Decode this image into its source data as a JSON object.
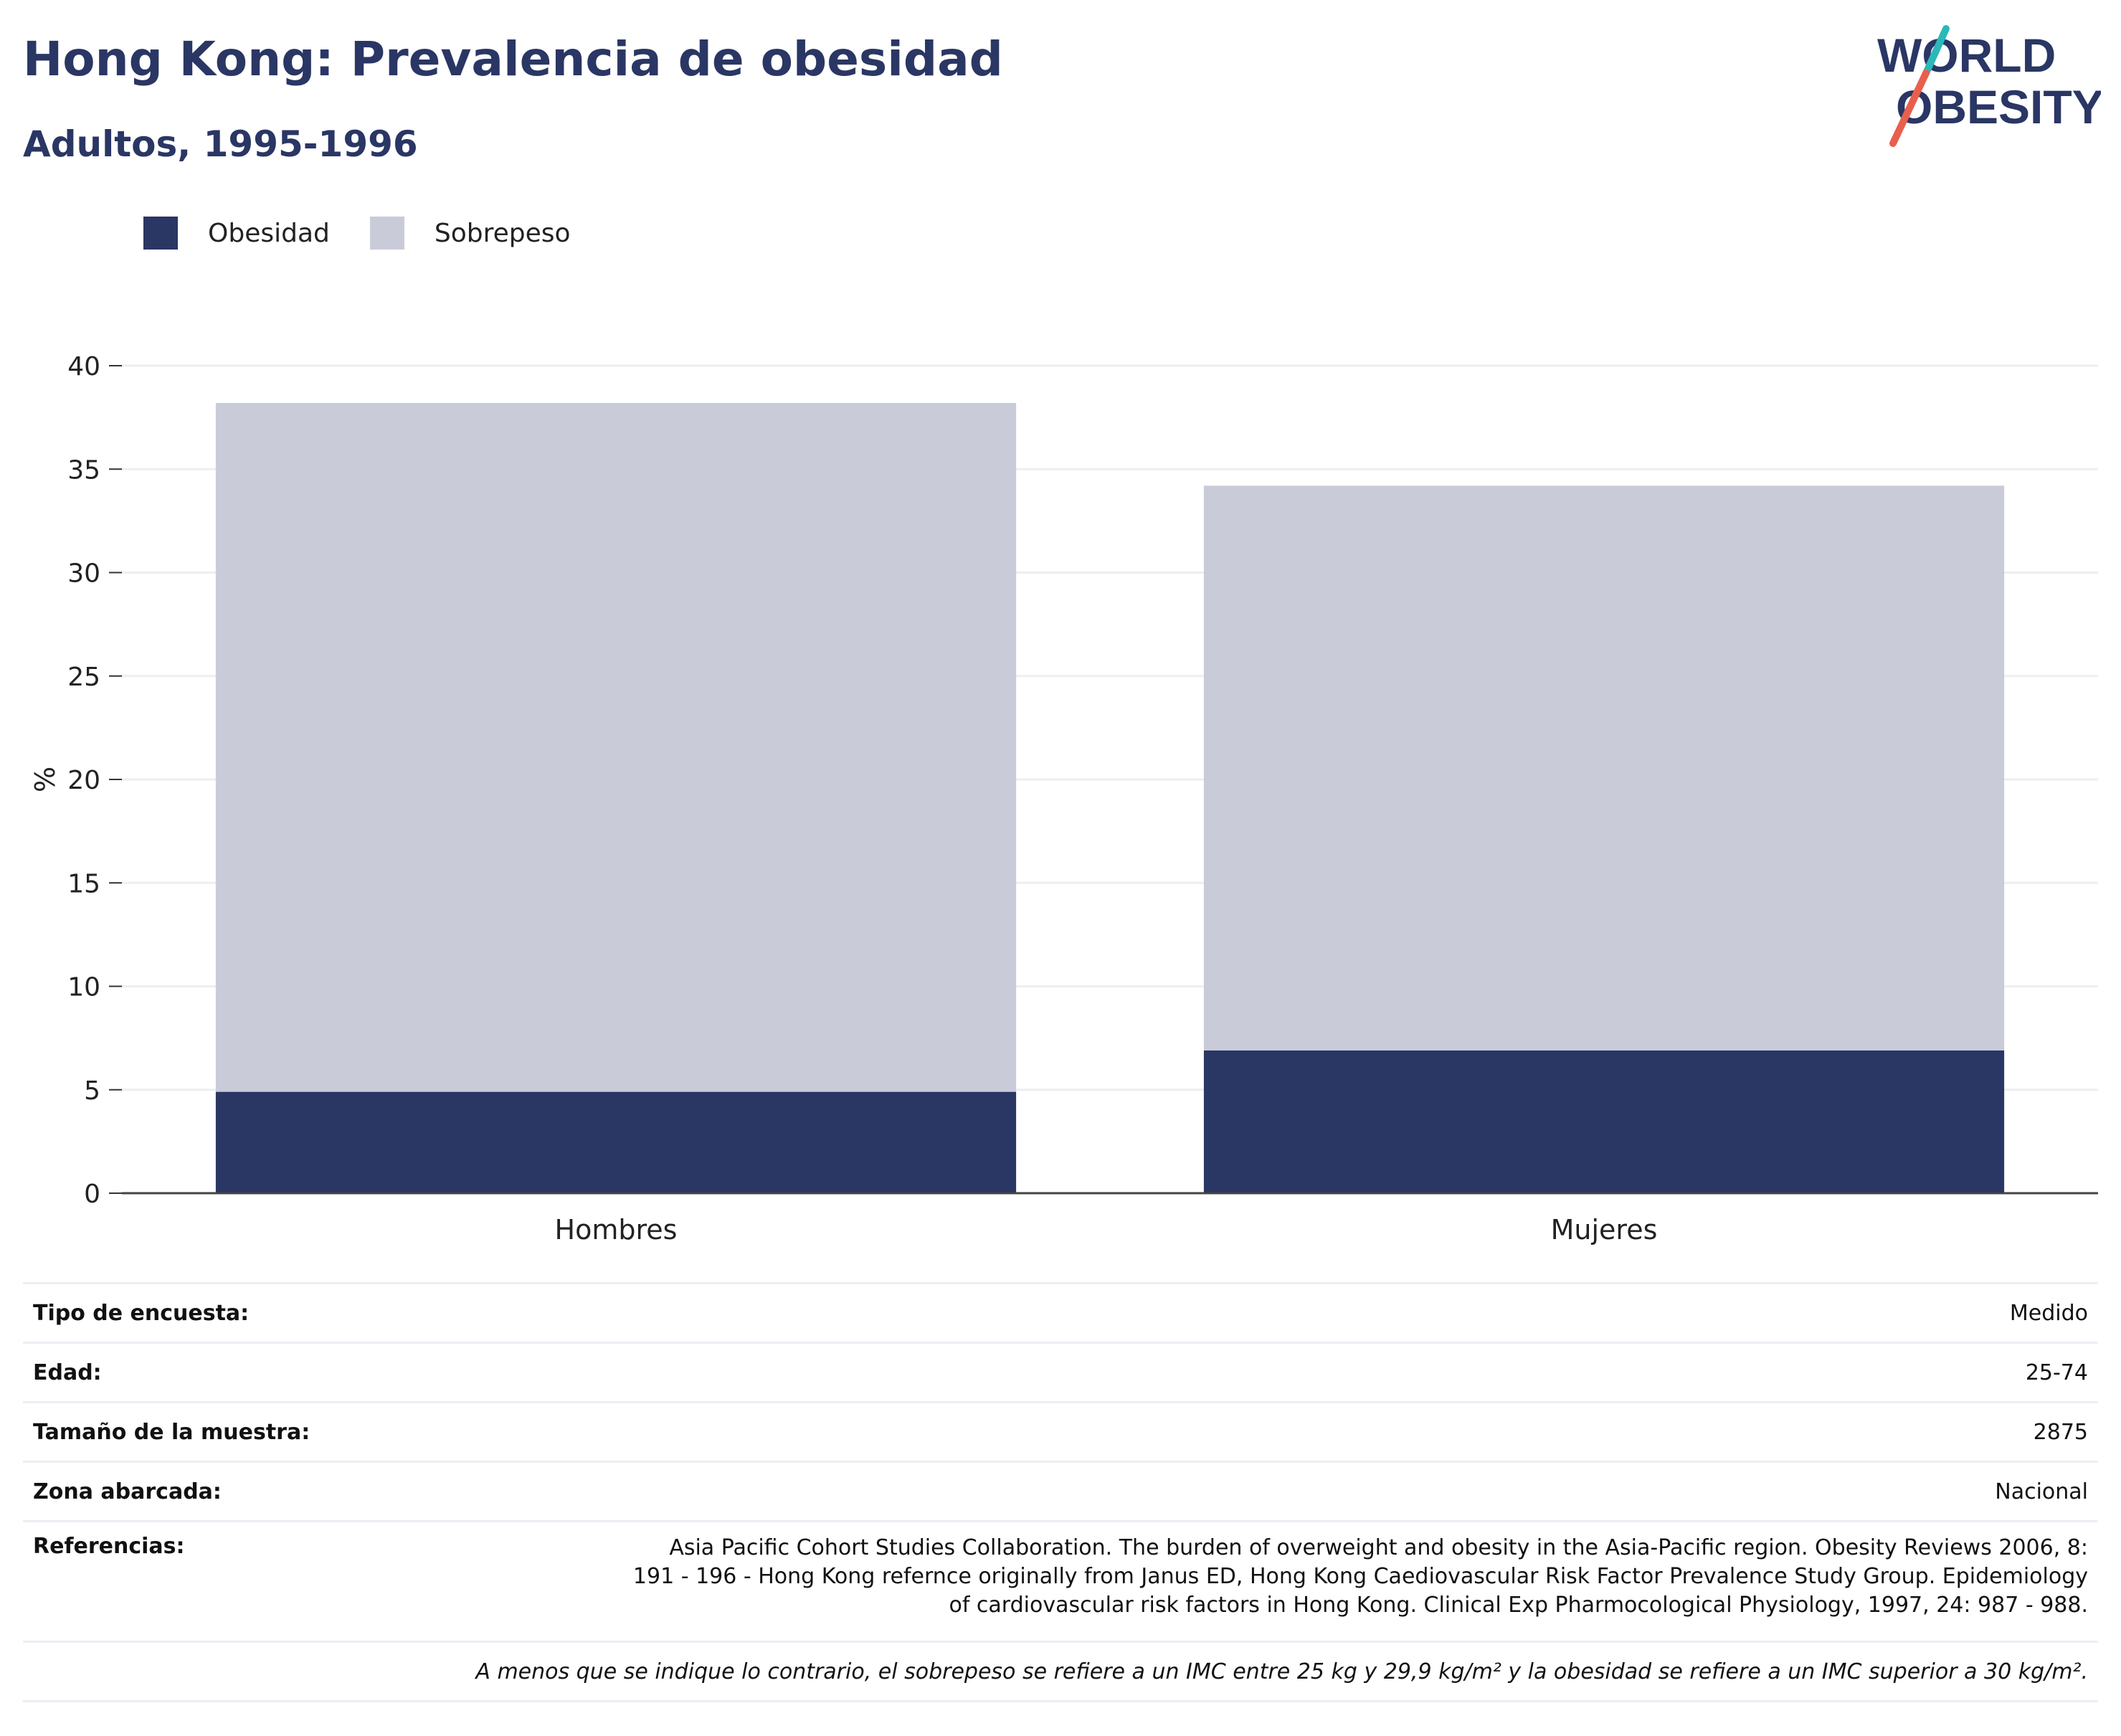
{
  "header": {
    "title": "Hong Kong: Prevalencia de obesidad",
    "subtitle": "Adultos, 1995-1996"
  },
  "logo": {
    "line1": "WORLD",
    "line2": "OBESITY"
  },
  "colors": {
    "obesity": "#2a3664",
    "overweight": "#c9ccd8",
    "title": "#2a3664",
    "logo_slash_top": "#2bb8b8",
    "logo_slash_bottom": "#e8604c"
  },
  "legend": {
    "items": [
      "Obesidad",
      "Sobrepeso"
    ]
  },
  "chart_data": {
    "type": "bar",
    "stacked": true,
    "categories": [
      "Hombres",
      "Mujeres"
    ],
    "series": [
      {
        "name": "Obesidad",
        "values": [
          4.9,
          6.9
        ]
      },
      {
        "name": "Sobrepeso",
        "values": [
          33.3,
          27.3
        ]
      }
    ],
    "ylabel": "%",
    "ylim": [
      0,
      40
    ],
    "yticks": [
      0,
      5,
      10,
      15,
      20,
      25,
      30,
      35,
      40
    ],
    "grid": true,
    "legend_position": "top-left"
  },
  "meta": {
    "survey_type": {
      "label": "Tipo de encuesta:",
      "value": "Medido"
    },
    "age": {
      "label": "Edad:",
      "value": "25-74"
    },
    "sample_size": {
      "label": "Tamaño de la muestra:",
      "value": "2875"
    },
    "area": {
      "label": "Zona abarcada:",
      "value": "Nacional"
    },
    "references": {
      "label": "Referencias:",
      "lines": [
        "Asia Pacific Cohort Studies Collaboration. The burden of overweight and obesity in the Asia-Pacific region. Obesity Reviews 2006, 8:",
        "191 - 196 - Hong Kong refernce originally from Janus ED, Hong Kong Caediovascular Risk Factor Prevalence Study Group. Epidemiology",
        "of cardiovascular risk factors in Hong Kong. Clinical Exp Pharmocological Physiology, 1997, 24: 987 - 988."
      ]
    },
    "footnote": "A menos que se indique lo contrario, el sobrepeso se refiere a un IMC entre 25 kg y 29,9 kg/m² y la obesidad se refiere a un IMC superior a 30 kg/m²."
  }
}
